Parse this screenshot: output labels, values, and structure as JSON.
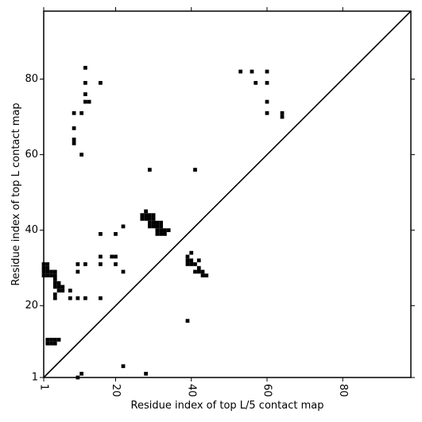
{
  "chart_data": {
    "type": "heatmap",
    "title": "",
    "xlabel": "Residue index of top L/5 contact map",
    "ylabel": "Residue index of top L contact map",
    "xlim": [
      1,
      98
    ],
    "ylim": [
      1,
      98
    ],
    "xticks": [
      1,
      20,
      40,
      60,
      80
    ],
    "yticks": [
      1,
      20,
      40,
      60,
      80
    ],
    "x_tick_labels": [
      "1",
      "20",
      "40",
      "60",
      "80"
    ],
    "y_tick_labels": [
      "1",
      "20",
      "40",
      "60",
      "80"
    ],
    "x_tick_rotation_deg": -90,
    "diagonal": true,
    "grid": false,
    "color": "#000000",
    "contacts": [
      [
        1,
        28
      ],
      [
        1,
        29
      ],
      [
        1,
        30
      ],
      [
        1,
        31
      ],
      [
        2,
        28
      ],
      [
        2,
        29
      ],
      [
        2,
        30
      ],
      [
        2,
        31
      ],
      [
        3,
        28
      ],
      [
        3,
        29
      ],
      [
        4,
        25
      ],
      [
        4,
        26
      ],
      [
        4,
        27
      ],
      [
        4,
        28
      ],
      [
        4,
        29
      ],
      [
        4,
        22
      ],
      [
        4,
        23
      ],
      [
        5,
        24
      ],
      [
        5,
        25
      ],
      [
        5,
        26
      ],
      [
        6,
        24
      ],
      [
        6,
        25
      ],
      [
        2,
        10
      ],
      [
        2,
        11
      ],
      [
        3,
        10
      ],
      [
        3,
        11
      ],
      [
        4,
        10
      ],
      [
        4,
        11
      ],
      [
        5,
        11
      ],
      [
        8,
        22
      ],
      [
        8,
        24
      ],
      [
        9,
        63
      ],
      [
        9,
        64
      ],
      [
        9,
        67
      ],
      [
        9,
        71
      ],
      [
        10,
        22
      ],
      [
        10,
        29
      ],
      [
        10,
        31
      ],
      [
        10,
        1
      ],
      [
        11,
        2
      ],
      [
        11,
        60
      ],
      [
        11,
        71
      ],
      [
        12,
        22
      ],
      [
        12,
        31
      ],
      [
        12,
        74
      ],
      [
        12,
        76
      ],
      [
        12,
        79
      ],
      [
        12,
        83
      ],
      [
        13,
        74
      ],
      [
        16,
        22
      ],
      [
        16,
        31
      ],
      [
        16,
        33
      ],
      [
        16,
        39
      ],
      [
        16,
        79
      ],
      [
        19,
        33
      ],
      [
        20,
        31
      ],
      [
        20,
        33
      ],
      [
        20,
        39
      ],
      [
        22,
        41
      ],
      [
        22,
        29
      ],
      [
        22,
        4
      ],
      [
        27,
        43
      ],
      [
        27,
        44
      ],
      [
        28,
        43
      ],
      [
        28,
        44
      ],
      [
        28,
        45
      ],
      [
        28,
        2
      ],
      [
        29,
        41
      ],
      [
        29,
        42
      ],
      [
        29,
        43
      ],
      [
        29,
        44
      ],
      [
        29,
        56
      ],
      [
        30,
        41
      ],
      [
        30,
        42
      ],
      [
        30,
        43
      ],
      [
        30,
        44
      ],
      [
        31,
        39
      ],
      [
        31,
        40
      ],
      [
        31,
        41
      ],
      [
        31,
        42
      ],
      [
        32,
        39
      ],
      [
        32,
        40
      ],
      [
        32,
        41
      ],
      [
        32,
        42
      ],
      [
        33,
        39
      ],
      [
        33,
        40
      ],
      [
        34,
        40
      ],
      [
        39,
        31
      ],
      [
        39,
        32
      ],
      [
        39,
        33
      ],
      [
        39,
        16
      ],
      [
        40,
        31
      ],
      [
        40,
        32
      ],
      [
        40,
        34
      ],
      [
        41,
        31
      ],
      [
        41,
        29
      ],
      [
        41,
        56
      ],
      [
        42,
        29
      ],
      [
        42,
        30
      ],
      [
        42,
        32
      ],
      [
        43,
        28
      ],
      [
        43,
        29
      ],
      [
        44,
        28
      ],
      [
        53,
        82
      ],
      [
        56,
        82
      ],
      [
        57,
        79
      ],
      [
        60,
        71
      ],
      [
        60,
        74
      ],
      [
        60,
        79
      ],
      [
        60,
        82
      ],
      [
        64,
        70
      ],
      [
        64,
        71
      ]
    ]
  }
}
